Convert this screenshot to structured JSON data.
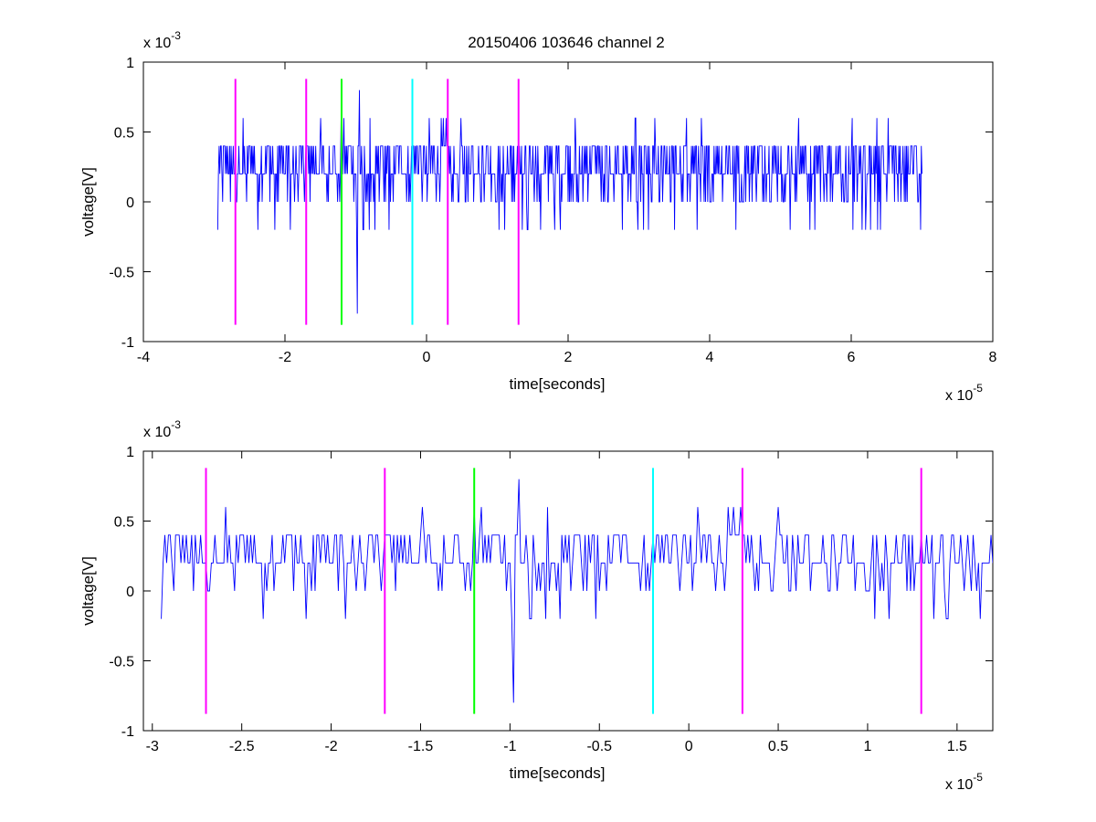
{
  "figure": {
    "title": "20150406 103646 channel 2"
  },
  "chart_data": [
    {
      "type": "line",
      "title": "20150406 103646 channel 2",
      "xlabel": "time[seconds]",
      "ylabel": "voltage[V]",
      "x_multiplier": "x 10",
      "x_exponent": "-5",
      "y_multiplier": "x 10",
      "y_exponent": "-3",
      "xlim": [
        -4,
        8
      ],
      "ylim": [
        -1,
        1
      ],
      "x_ticks": [
        -4,
        -2,
        0,
        2,
        4,
        6,
        8
      ],
      "x_tick_labels": [
        "-4",
        "-2",
        "0",
        "2",
        "4",
        "6",
        "8"
      ],
      "y_ticks": [
        -1,
        -0.5,
        0,
        0.5,
        1
      ],
      "y_tick_labels": [
        "-1",
        "-0.5",
        "0",
        "0.5",
        "1"
      ],
      "grid": false,
      "series": [
        {
          "color": "#0000ff",
          "x_start": -2.95,
          "x_end": 7.0,
          "samples": 1000,
          "y_levels": [
            -0.2,
            0,
            0.2,
            0.4,
            0.6,
            0.8,
            -0.8
          ]
        }
      ],
      "markers": [
        {
          "x": -2.7,
          "color": "#ff00ff"
        },
        {
          "x": -1.7,
          "color": "#ff00ff"
        },
        {
          "x": -1.2,
          "color": "#00ff00"
        },
        {
          "x": -0.2,
          "color": "#00ffff"
        },
        {
          "x": 0.3,
          "color": "#ff00ff"
        },
        {
          "x": 1.3,
          "color": "#ff00ff"
        }
      ],
      "marker_range": [
        -0.88,
        0.88
      ]
    },
    {
      "type": "line",
      "title": "",
      "xlabel": "time[seconds]",
      "ylabel": "voltage[V]",
      "x_multiplier": "x 10",
      "x_exponent": "-5",
      "y_multiplier": "x 10",
      "y_exponent": "-3",
      "xlim": [
        -3.05,
        1.7
      ],
      "ylim": [
        -1,
        1
      ],
      "x_ticks": [
        -3,
        -2.5,
        -2,
        -1.5,
        -1,
        -0.5,
        0,
        0.5,
        1,
        1.5
      ],
      "x_tick_labels": [
        "-3",
        "-2.5",
        "-2",
        "-1.5",
        "-1",
        "-0.5",
        "0",
        "0.5",
        "1",
        "1.5"
      ],
      "y_ticks": [
        -1,
        -0.5,
        0,
        0.5,
        1
      ],
      "y_tick_labels": [
        "-1",
        "-0.5",
        "0",
        "0.5",
        "1"
      ],
      "grid": false,
      "series": [
        {
          "color": "#0000ff",
          "x_start": -2.95,
          "x_end": 1.7,
          "samples": 466,
          "y_levels": [
            -0.2,
            0,
            0.2,
            0.4,
            0.6,
            0.8,
            -0.8
          ]
        }
      ],
      "markers": [
        {
          "x": -2.7,
          "color": "#ff00ff"
        },
        {
          "x": -1.7,
          "color": "#ff00ff"
        },
        {
          "x": -1.2,
          "color": "#00ff00"
        },
        {
          "x": -0.2,
          "color": "#00ffff"
        },
        {
          "x": 0.3,
          "color": "#ff00ff"
        },
        {
          "x": 1.3,
          "color": "#ff00ff"
        }
      ],
      "marker_range": [
        -0.88,
        0.88
      ]
    }
  ]
}
